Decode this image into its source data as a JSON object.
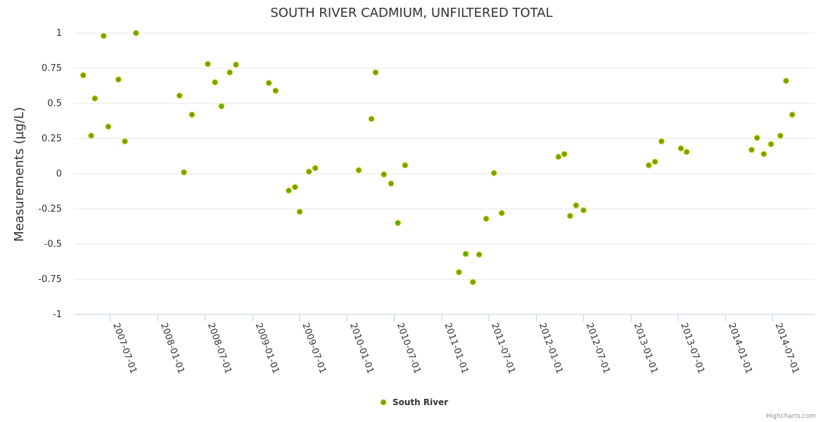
{
  "chart_data": {
    "type": "scatter",
    "title": "SOUTH RIVER CADMIUM, UNFILTERED TOTAL",
    "ylabel": "Measurements (µg/L)",
    "xlabel": "",
    "ylim": [
      -1,
      1
    ],
    "y_ticks": [
      {
        "value": 1,
        "label": "1"
      },
      {
        "value": 0.75,
        "label": "0.75"
      },
      {
        "value": 0.5,
        "label": "0.5"
      },
      {
        "value": 0.25,
        "label": "0.25"
      },
      {
        "value": 0,
        "label": "0"
      },
      {
        "value": -0.25,
        "label": "-0.25"
      },
      {
        "value": -0.5,
        "label": "-0.5"
      },
      {
        "value": -0.75,
        "label": "-0.75"
      },
      {
        "value": -1,
        "label": "-1"
      }
    ],
    "xlim": [
      "2007-02-10",
      "2014-12-10"
    ],
    "x_ticks": [
      "2007-07-01",
      "2008-01-01",
      "2008-07-01",
      "2009-01-01",
      "2009-07-01",
      "2010-01-01",
      "2010-07-01",
      "2011-01-01",
      "2011-07-01",
      "2012-01-01",
      "2012-07-01",
      "2013-01-01",
      "2013-07-01",
      "2014-01-01",
      "2014-07-01"
    ],
    "legend": "bottom-center",
    "marker_color": "#66aa00",
    "marker_stroke": "#ffcc33",
    "series": [
      {
        "name": "South River",
        "points": [
          {
            "x": "2007-03-18",
            "y": 0.7
          },
          {
            "x": "2007-04-18",
            "y": 0.27
          },
          {
            "x": "2007-05-02",
            "y": 0.535
          },
          {
            "x": "2007-06-05",
            "y": 0.98
          },
          {
            "x": "2007-06-23",
            "y": 0.335
          },
          {
            "x": "2007-08-01",
            "y": 0.67
          },
          {
            "x": "2007-08-26",
            "y": 0.23
          },
          {
            "x": "2007-10-08",
            "y": 1.0
          },
          {
            "x": "2008-03-24",
            "y": 0.555
          },
          {
            "x": "2008-04-10",
            "y": 0.01
          },
          {
            "x": "2008-05-11",
            "y": 0.42
          },
          {
            "x": "2008-07-11",
            "y": 0.78
          },
          {
            "x": "2008-08-08",
            "y": 0.65
          },
          {
            "x": "2008-09-02",
            "y": 0.48
          },
          {
            "x": "2008-10-04",
            "y": 0.72
          },
          {
            "x": "2008-10-28",
            "y": 0.775
          },
          {
            "x": "2009-03-04",
            "y": 0.645
          },
          {
            "x": "2009-03-30",
            "y": 0.59
          },
          {
            "x": "2009-05-20",
            "y": -0.12
          },
          {
            "x": "2009-06-13",
            "y": -0.095
          },
          {
            "x": "2009-07-01",
            "y": -0.27
          },
          {
            "x": "2009-08-06",
            "y": 0.015
          },
          {
            "x": "2009-08-30",
            "y": 0.04
          },
          {
            "x": "2010-02-14",
            "y": 0.025
          },
          {
            "x": "2010-04-04",
            "y": 0.39
          },
          {
            "x": "2010-04-20",
            "y": 0.72
          },
          {
            "x": "2010-05-22",
            "y": -0.005
          },
          {
            "x": "2010-06-19",
            "y": -0.07
          },
          {
            "x": "2010-07-15",
            "y": -0.35
          },
          {
            "x": "2010-08-12",
            "y": 0.06
          },
          {
            "x": "2011-03-08",
            "y": -0.7
          },
          {
            "x": "2011-04-03",
            "y": -0.57
          },
          {
            "x": "2011-05-01",
            "y": -0.77
          },
          {
            "x": "2011-05-25",
            "y": -0.575
          },
          {
            "x": "2011-06-21",
            "y": -0.32
          },
          {
            "x": "2011-07-21",
            "y": 0.005
          },
          {
            "x": "2011-08-20",
            "y": -0.28
          },
          {
            "x": "2012-03-26",
            "y": 0.12
          },
          {
            "x": "2012-04-18",
            "y": 0.14
          },
          {
            "x": "2012-05-10",
            "y": -0.3
          },
          {
            "x": "2012-06-02",
            "y": -0.225
          },
          {
            "x": "2012-07-01",
            "y": -0.26
          },
          {
            "x": "2013-03-10",
            "y": 0.06
          },
          {
            "x": "2013-04-03",
            "y": 0.085
          },
          {
            "x": "2013-04-28",
            "y": 0.23
          },
          {
            "x": "2013-07-12",
            "y": 0.18
          },
          {
            "x": "2013-08-03",
            "y": 0.155
          },
          {
            "x": "2014-04-11",
            "y": 0.17
          },
          {
            "x": "2014-05-02",
            "y": 0.255
          },
          {
            "x": "2014-05-28",
            "y": 0.14
          },
          {
            "x": "2014-06-25",
            "y": 0.21
          },
          {
            "x": "2014-07-31",
            "y": 0.27
          },
          {
            "x": "2014-08-22",
            "y": 0.66
          },
          {
            "x": "2014-09-15",
            "y": 0.42
          }
        ]
      }
    ]
  },
  "credits": "Highcharts.com"
}
